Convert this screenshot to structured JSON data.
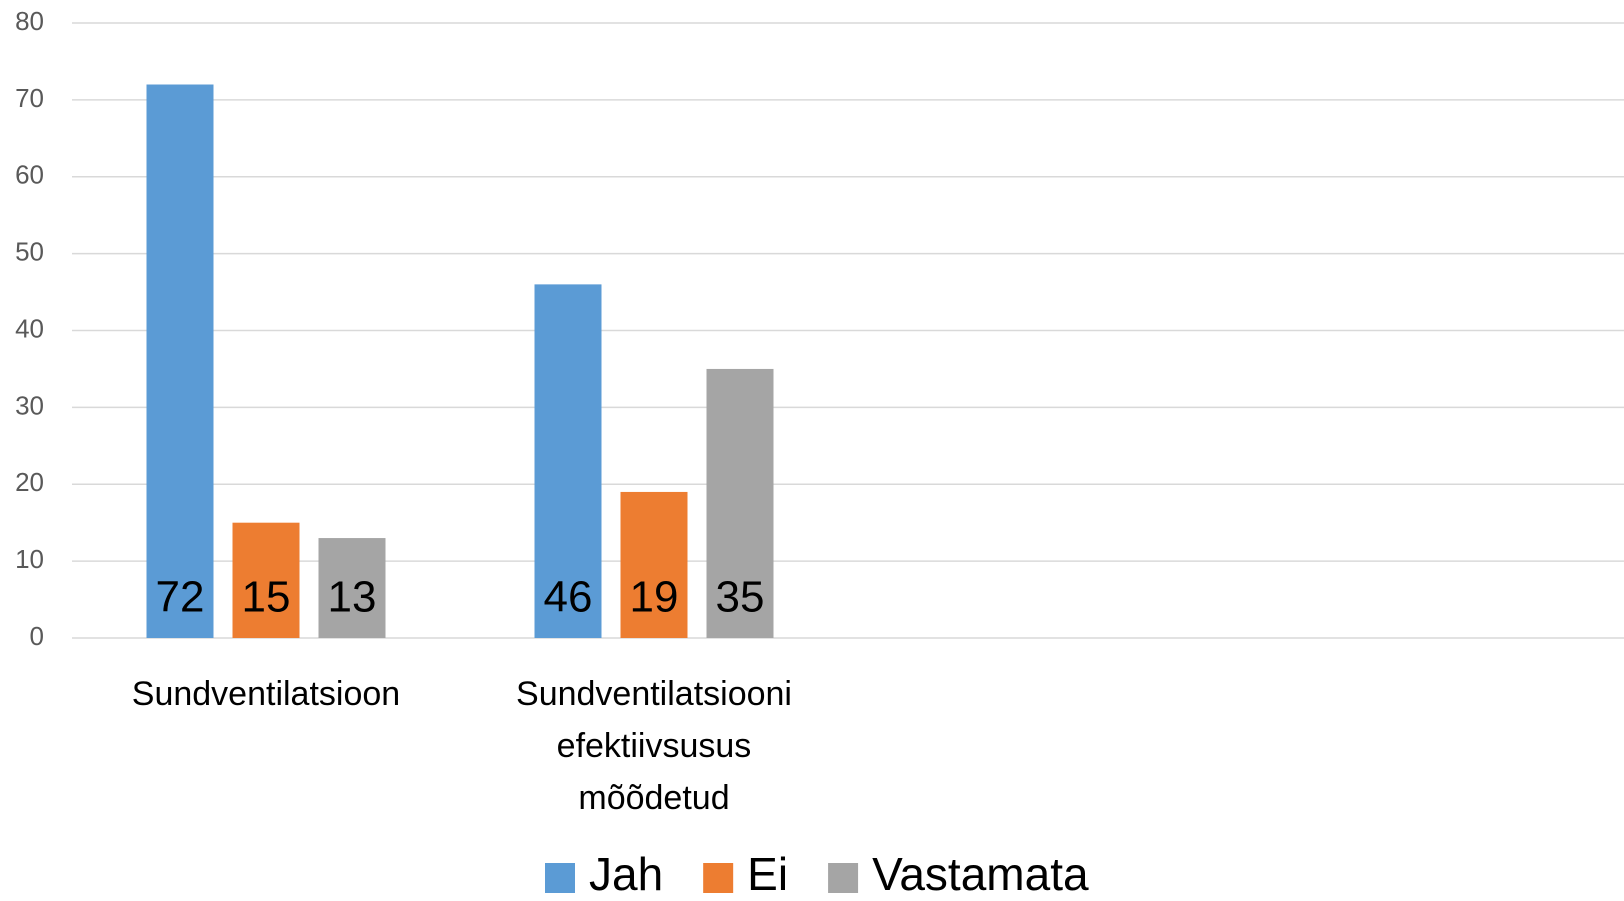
{
  "chart_data": {
    "type": "bar",
    "categories": [
      "Sundventilatsioon",
      "Sundventilatsiooni efektiivsusus mõõdetud",
      null,
      null
    ],
    "series": [
      {
        "name": "Jah",
        "color": "#5b9bd5",
        "values": [
          72,
          46,
          null,
          null
        ]
      },
      {
        "name": "Ei",
        "color": "#ed7d31",
        "values": [
          15,
          19,
          null,
          null
        ]
      },
      {
        "name": "Vastamata",
        "color": "#a5a5a5",
        "values": [
          13,
          35,
          null,
          null
        ]
      }
    ],
    "ylim": [
      0,
      80
    ],
    "yticks": [
      0,
      10,
      20,
      30,
      40,
      50,
      60,
      70,
      80
    ],
    "grid": true,
    "legend": "bottom"
  }
}
